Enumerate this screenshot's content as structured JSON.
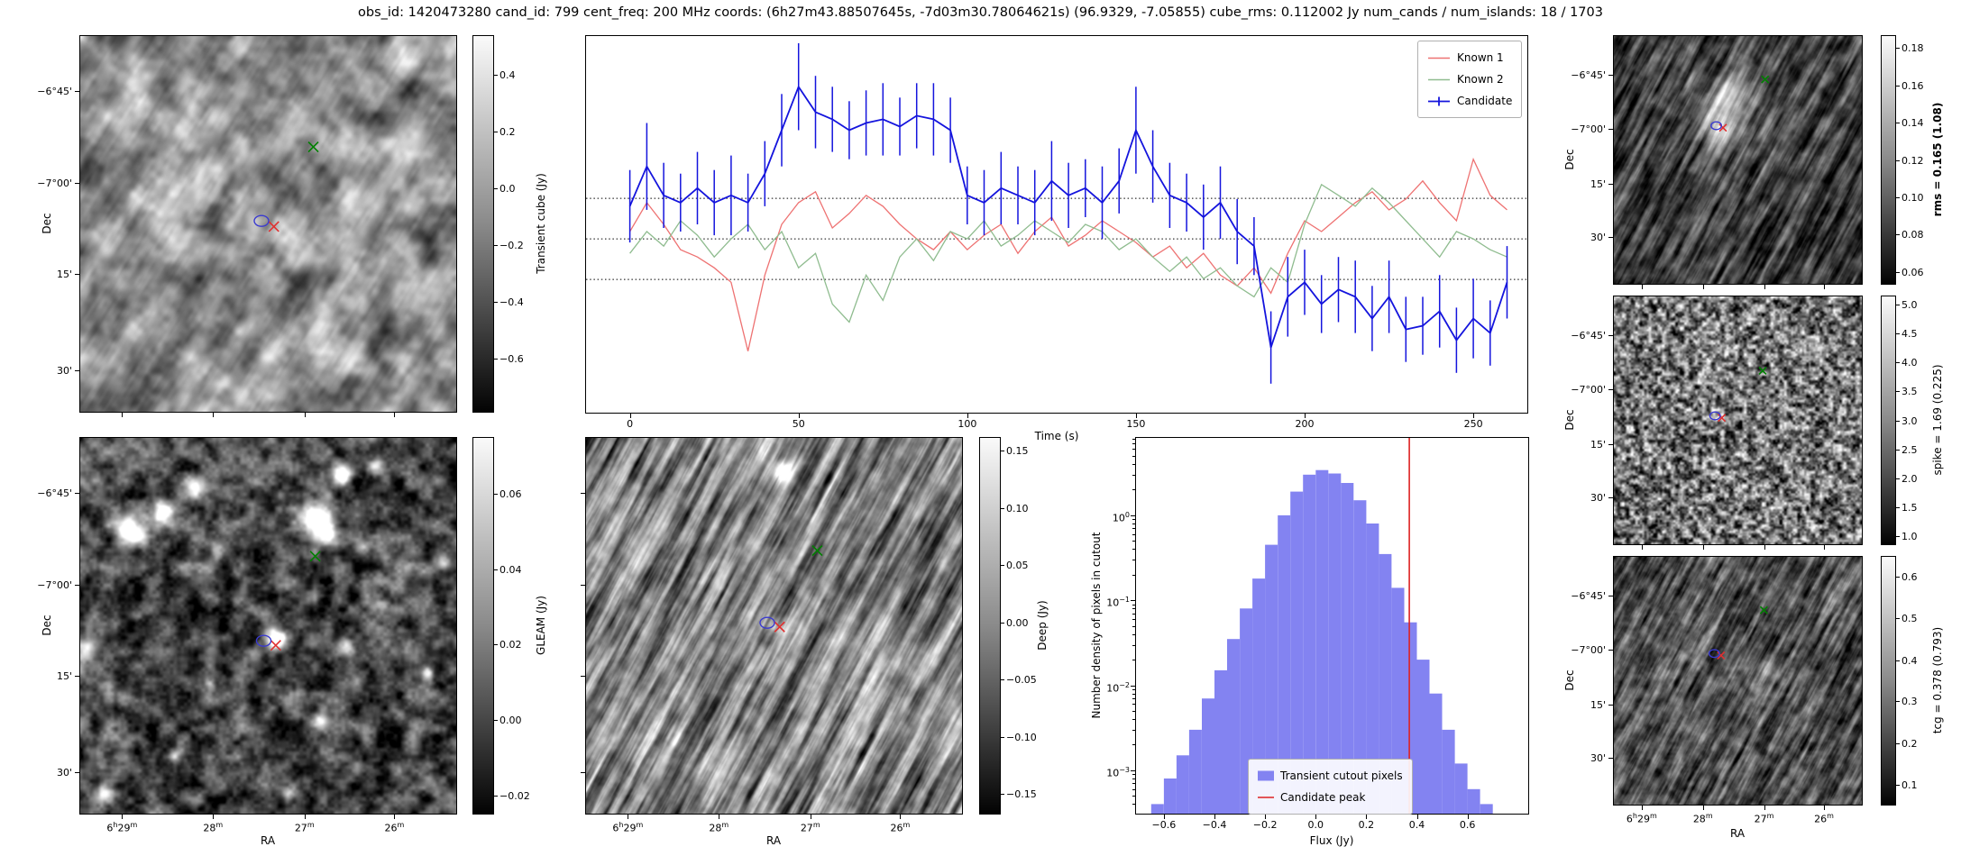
{
  "title": "obs_id: 1420473280 cand_id: 799 cent_freq: 200 MHz coords: (6h27m43.88507645s, -7d03m30.78064621s) (96.9329, -7.05855) cube_rms: 0.112002 Jy num_cands / num_islands: 18 / 1703",
  "axes": {
    "ra_label": "RA",
    "dec_label": "Dec"
  },
  "cutout_axes": {
    "dec_labels": [
      "−6°45'",
      "−7°00'",
      "15'",
      "30'"
    ],
    "ra_labels": [
      "6h29m",
      "28m",
      "27m",
      "26m"
    ],
    "dec_fracs_main": [
      0.149,
      0.391,
      0.632,
      0.887
    ],
    "dec_fracs_small": [
      0.16,
      0.375,
      0.595,
      0.81
    ],
    "ra_fracs_main": [
      0.113,
      0.354,
      0.596,
      0.834
    ],
    "ra_fracs_small": [
      0.115,
      0.36,
      0.605,
      0.845
    ]
  },
  "panels": {
    "transient": {
      "colorbar_label": "Transient cube (Jy)",
      "cb_ticks": [
        [
          "0.4",
          0.105
        ],
        [
          "0.2",
          0.256
        ],
        [
          "0.0",
          0.406
        ],
        [
          "−0.2",
          0.556
        ],
        [
          "−0.4",
          0.707
        ],
        [
          "−0.6",
          0.857
        ]
      ],
      "markers": [
        [
          "x",
          "#008000",
          0.62,
          0.295
        ],
        [
          "x",
          "#e03030",
          0.515,
          0.507
        ],
        [
          "o",
          "#3a3ad0",
          0.482,
          0.492
        ]
      ],
      "texture": {
        "seed": 3,
        "scale": 30,
        "oct": 3,
        "base": 0.55,
        "amp": 0.4,
        "streak": {
          "angle": -58,
          "stretch": 3,
          "mix": 0.3
        }
      }
    },
    "gleam": {
      "colorbar_label": "GLEAM (Jy)",
      "cb_ticks": [
        [
          "0.06",
          0.15
        ],
        [
          "0.04",
          0.35
        ],
        [
          "0.02",
          0.55
        ],
        [
          "0.00",
          0.75
        ],
        [
          "−0.02",
          0.95
        ]
      ],
      "markers": [
        [
          "x",
          "#008000",
          0.625,
          0.315
        ],
        [
          "x",
          "#e03030",
          0.52,
          0.552
        ],
        [
          "o",
          "#3a3ad0",
          0.488,
          0.54
        ]
      ],
      "texture": {
        "seed": 9,
        "scale": 16,
        "oct": 3,
        "base": 0.28,
        "amp": 0.3,
        "sources": [
          [
            0.7,
            0.095,
            7,
            0.9
          ],
          [
            0.785,
            0.075,
            6,
            0.7
          ],
          [
            0.63,
            0.215,
            12,
            1.2
          ],
          [
            0.655,
            0.258,
            8,
            0.8
          ],
          [
            0.305,
            0.125,
            8,
            0.85
          ],
          [
            0.22,
            0.195,
            9,
            0.9
          ],
          [
            0.135,
            0.245,
            11,
            1.0
          ],
          [
            0.365,
            0.3,
            6,
            0.6
          ],
          [
            0.52,
            0.535,
            9,
            1.0
          ],
          [
            0.705,
            0.55,
            7,
            0.75
          ],
          [
            0.8,
            0.445,
            6,
            0.6
          ],
          [
            0.015,
            0.565,
            8,
            0.8
          ],
          [
            0.635,
            0.75,
            6,
            0.65
          ],
          [
            0.92,
            0.625,
            5,
            0.55
          ],
          [
            0.25,
            0.845,
            5,
            0.5
          ],
          [
            0.06,
            0.945,
            6,
            0.6
          ],
          [
            0.555,
            0.945,
            5,
            0.5
          ],
          [
            0.965,
            0.33,
            5,
            0.5
          ],
          [
            0.345,
            0.655,
            4,
            0.4
          ],
          [
            0.75,
            0.29,
            5,
            0.45
          ]
        ]
      }
    },
    "deep": {
      "colorbar_label": "Deep (Jy)",
      "cb_ticks": [
        [
          "0.15",
          0.036
        ],
        [
          "0.10",
          0.188
        ],
        [
          "0.05",
          0.339
        ],
        [
          "0.00",
          0.491
        ],
        [
          "−0.05",
          0.642
        ],
        [
          "−0.10",
          0.794
        ],
        [
          "−0.15",
          0.945
        ]
      ],
      "markers": [
        [
          "x",
          "#008000",
          0.615,
          0.3
        ],
        [
          "x",
          "#e03030",
          0.515,
          0.503
        ],
        [
          "o",
          "#3a3ad0",
          0.482,
          0.492
        ]
      ],
      "texture": {
        "seed": 17,
        "scale": 14,
        "oct": 3,
        "base": 0.5,
        "amp": 0.45,
        "streak": {
          "angle": -62,
          "stretch": 6,
          "mix": 0.75
        },
        "sources": [
          [
            0.52,
            0.09,
            8,
            0.95
          ],
          [
            0.5,
            0.5,
            5,
            0.3
          ]
        ]
      }
    },
    "rms": {
      "colorbar_label": "rms = 0.165 (1.08)",
      "bold_label": true,
      "cb_ticks": [
        [
          "0.18",
          0.052
        ],
        [
          "0.16",
          0.201
        ],
        [
          "0.14",
          0.351
        ],
        [
          "0.12",
          0.5
        ],
        [
          "0.10",
          0.649
        ],
        [
          "0.08",
          0.799
        ],
        [
          "0.06",
          0.948
        ]
      ],
      "markers": [
        [
          "x",
          "#008000",
          0.61,
          0.175
        ],
        [
          "x",
          "#e03030",
          0.44,
          0.37
        ],
        [
          "o",
          "#3a3ad0",
          0.413,
          0.362
        ]
      ],
      "texture": {
        "seed": 25,
        "scale": 12,
        "oct": 3,
        "base": 0.25,
        "amp": 0.38,
        "streak": {
          "angle": -62,
          "stretch": 5,
          "mix": 0.7
        },
        "sources": [
          [
            0.45,
            0.3,
            22,
            0.4
          ],
          [
            0.42,
            0.38,
            14,
            0.35
          ],
          [
            0.48,
            0.22,
            16,
            0.3
          ]
        ]
      }
    },
    "spike": {
      "colorbar_label": "spike = 1.69 (0.225)",
      "cb_ticks": [
        [
          "5.0",
          0.035
        ],
        [
          "4.5",
          0.151
        ],
        [
          "4.0",
          0.267
        ],
        [
          "3.5",
          0.384
        ],
        [
          "3.0",
          0.5
        ],
        [
          "2.5",
          0.616
        ],
        [
          "2.0",
          0.733
        ],
        [
          "1.5",
          0.849
        ],
        [
          "1.0",
          0.965
        ]
      ],
      "markers": [
        [
          "x",
          "#008000",
          0.6,
          0.3
        ],
        [
          "x",
          "#e03030",
          0.435,
          0.49
        ],
        [
          "o",
          "#3a3ad0",
          0.408,
          0.482
        ]
      ],
      "texture": {
        "seed": 31,
        "scale": 5,
        "oct": 2,
        "base": 0.47,
        "amp": 0.4
      }
    },
    "tcg": {
      "colorbar_label": "tcg = 0.378 (0.793)",
      "cb_ticks": [
        [
          "0.6",
          0.083
        ],
        [
          "0.5",
          0.25
        ],
        [
          "0.4",
          0.417
        ],
        [
          "0.3",
          0.583
        ],
        [
          "0.2",
          0.75
        ],
        [
          "0.1",
          0.917
        ]
      ],
      "markers": [
        [
          "x",
          "#008000",
          0.605,
          0.215
        ],
        [
          "x",
          "#e03030",
          0.432,
          0.398
        ],
        [
          "o",
          "#3a3ad0",
          0.405,
          0.39
        ]
      ],
      "texture": {
        "seed": 39,
        "scale": 10,
        "oct": 3,
        "base": 0.33,
        "amp": 0.4,
        "streak": {
          "angle": -62,
          "stretch": 4.5,
          "mix": 0.65
        }
      }
    }
  },
  "chart_data": [
    {
      "type": "line",
      "name": "lightcurve",
      "xlabel": "Time (s)",
      "xlim": [
        -13,
        266
      ],
      "ylim": [
        -0.48,
        0.56
      ],
      "hlines": [
        0.112,
        0,
        -0.112
      ],
      "xticks": {
        "values": [
          0,
          50,
          100,
          150,
          200,
          250
        ],
        "labels": [
          "0",
          "50",
          "100",
          "150",
          "200",
          "250"
        ]
      },
      "x": [
        0,
        5,
        10,
        15,
        20,
        25,
        30,
        35,
        40,
        45,
        50,
        55,
        60,
        65,
        70,
        75,
        80,
        85,
        90,
        95,
        100,
        105,
        110,
        115,
        120,
        125,
        130,
        135,
        140,
        145,
        150,
        155,
        160,
        165,
        170,
        175,
        180,
        185,
        190,
        195,
        200,
        205,
        210,
        215,
        220,
        225,
        230,
        235,
        240,
        245,
        250,
        255,
        260
      ],
      "series": [
        {
          "name": "Known 1",
          "color": "#ee7272",
          "values": [
            0.02,
            0.1,
            0.04,
            -0.03,
            -0.05,
            -0.08,
            -0.12,
            -0.31,
            -0.1,
            0.04,
            0.1,
            0.13,
            0.03,
            0.07,
            0.12,
            0.09,
            0.04,
            0.0,
            -0.03,
            0.02,
            -0.03,
            0.01,
            0.04,
            -0.04,
            0.02,
            0.06,
            -0.02,
            0.01,
            0.05,
            0.02,
            -0.01,
            -0.05,
            -0.02,
            -0.08,
            -0.04,
            -0.1,
            -0.13,
            -0.08,
            -0.15,
            -0.04,
            0.05,
            0.02,
            0.06,
            0.1,
            0.13,
            0.08,
            0.11,
            0.16,
            0.1,
            0.05,
            0.22,
            0.12,
            0.08
          ]
        },
        {
          "name": "Known 2",
          "color": "#8fbc8f",
          "values": [
            -0.04,
            0.02,
            -0.02,
            0.05,
            0.01,
            -0.05,
            0.0,
            0.04,
            -0.03,
            0.02,
            -0.08,
            -0.04,
            -0.18,
            -0.23,
            -0.1,
            -0.17,
            -0.05,
            0.0,
            -0.06,
            0.02,
            0.0,
            0.05,
            -0.02,
            0.01,
            0.05,
            0.02,
            -0.01,
            0.04,
            0.02,
            -0.03,
            0.0,
            -0.05,
            -0.09,
            -0.05,
            -0.11,
            -0.08,
            -0.13,
            -0.16,
            -0.08,
            -0.12,
            0.04,
            0.15,
            0.12,
            0.09,
            0.14,
            0.1,
            0.05,
            0.0,
            -0.05,
            0.02,
            0.0,
            -0.03,
            -0.05
          ]
        },
        {
          "name": "Candidate",
          "color": "#1414dd",
          "values": [
            0.09,
            0.2,
            0.12,
            0.1,
            0.14,
            0.1,
            0.12,
            0.1,
            0.18,
            0.3,
            0.42,
            0.35,
            0.33,
            0.3,
            0.32,
            0.33,
            0.31,
            0.34,
            0.33,
            0.3,
            0.12,
            0.1,
            0.14,
            0.12,
            0.1,
            0.16,
            0.12,
            0.14,
            0.1,
            0.16,
            0.3,
            0.2,
            0.12,
            0.1,
            0.06,
            0.1,
            0.02,
            -0.02,
            -0.3,
            -0.16,
            -0.12,
            -0.18,
            -0.14,
            -0.16,
            -0.22,
            -0.16,
            -0.25,
            -0.24,
            -0.2,
            -0.28,
            -0.22,
            -0.26,
            -0.12
          ],
          "yerr": [
            0.1,
            0.12,
            0.09,
            0.08,
            0.1,
            0.09,
            0.11,
            0.08,
            0.09,
            0.1,
            0.12,
            0.1,
            0.09,
            0.08,
            0.09,
            0.1,
            0.08,
            0.09,
            0.1,
            0.09,
            0.08,
            0.09,
            0.1,
            0.08,
            0.09,
            0.11,
            0.09,
            0.08,
            0.1,
            0.09,
            0.12,
            0.1,
            0.09,
            0.08,
            0.09,
            0.1,
            0.09,
            0.08,
            0.1,
            0.11,
            0.09,
            0.08,
            0.09,
            0.1,
            0.09,
            0.1,
            0.09,
            0.08,
            0.1,
            0.09,
            0.11,
            0.09,
            0.1
          ]
        }
      ],
      "legend": [
        "Known 1",
        "Known 2",
        "Candidate"
      ],
      "legend_position": "upper right"
    },
    {
      "type": "bar",
      "name": "flux-histogram",
      "xlabel": "Flux (Jy)",
      "ylabel": "Number density of pixels in cutout",
      "yscale": "log",
      "xlim": [
        -0.71,
        0.84
      ],
      "ylog_lim": [
        -3.51,
        0.91
      ],
      "bin_width": 0.05,
      "bin_centers": [
        -0.625,
        -0.575,
        -0.525,
        -0.475,
        -0.425,
        -0.375,
        -0.325,
        -0.275,
        -0.225,
        -0.175,
        -0.125,
        -0.075,
        -0.025,
        0.025,
        0.075,
        0.125,
        0.175,
        0.225,
        0.275,
        0.325,
        0.375,
        0.425,
        0.475,
        0.525,
        0.575,
        0.625,
        0.675
      ],
      "values": [
        0.0004,
        0.0008,
        0.0015,
        0.003,
        0.007,
        0.015,
        0.035,
        0.08,
        0.18,
        0.45,
        1.0,
        1.9,
        3.0,
        3.4,
        3.1,
        2.4,
        1.5,
        0.8,
        0.35,
        0.14,
        0.055,
        0.02,
        0.008,
        0.003,
        0.0012,
        0.0006,
        0.0004
      ],
      "candidate_peak": 0.37,
      "bar_color": "#8383f1",
      "peak_color": "#dd2222",
      "xticks": {
        "values": [
          -0.6,
          -0.4,
          -0.2,
          0,
          0.2,
          0.4,
          0.6
        ],
        "labels": [
          "−0.6",
          "−0.4",
          "−0.2",
          "0.0",
          "0.2",
          "0.4",
          "0.6"
        ]
      },
      "yticks": {
        "logs": [
          0,
          -1,
          -2,
          -3
        ],
        "labels": [
          "10^0",
          "10^−1",
          "10^−2",
          "10^−3"
        ]
      },
      "legend": [
        "Transient cutout pixels",
        "Candidate peak"
      ]
    }
  ]
}
